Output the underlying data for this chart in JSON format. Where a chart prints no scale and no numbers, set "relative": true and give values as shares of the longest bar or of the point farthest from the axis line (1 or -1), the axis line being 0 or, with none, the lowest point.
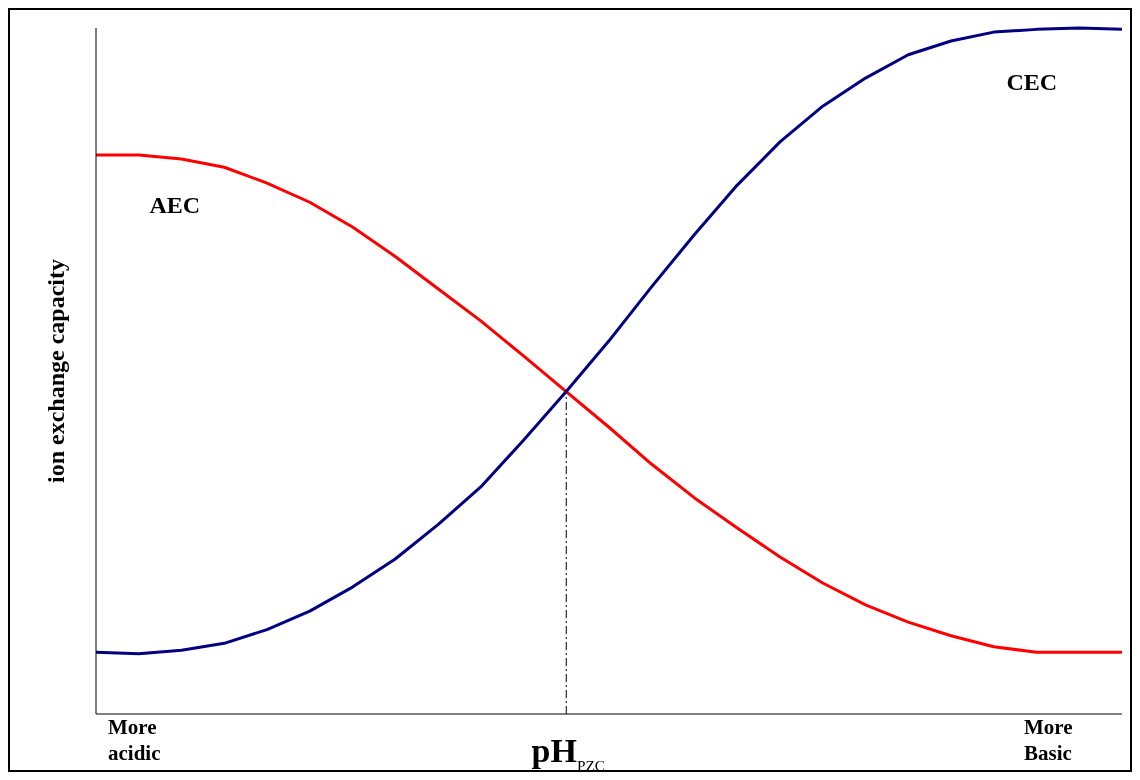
{
  "chart_data": {
    "type": "line",
    "ylabel": "ion exchange capacity",
    "xlabel": "pH$_{PZC}$",
    "relative": true,
    "categories": [
      null,
      null,
      null,
      null,
      null,
      null,
      null,
      null,
      null,
      null,
      null,
      null,
      null,
      null,
      null,
      null,
      null,
      null,
      null,
      null,
      null,
      null,
      null,
      null,
      null
    ],
    "series": [
      {
        "name": "AEC",
        "color": "#ff0000",
        "values": [
          0.815,
          0.815,
          0.809,
          0.797,
          0.774,
          0.746,
          0.71,
          0.667,
          0.62,
          0.573,
          0.522,
          0.47,
          0.418,
          0.364,
          0.315,
          0.271,
          0.229,
          0.191,
          0.159,
          0.134,
          0.114,
          0.098,
          0.09,
          0.09,
          0.09
        ]
      },
      {
        "name": "CEC",
        "color": "#000080",
        "values": [
          0.09,
          0.088,
          0.093,
          0.103,
          0.123,
          0.15,
          0.185,
          0.226,
          0.276,
          0.331,
          0.399,
          0.47,
          0.544,
          0.623,
          0.699,
          0.771,
          0.834,
          0.886,
          0.927,
          0.961,
          0.981,
          0.994,
          0.998,
          1,
          0.998
        ]
      }
    ],
    "annotations": [
      "More acidic",
      "More Basic"
    ],
    "legend": false,
    "grid": false,
    "marker": "none",
    "line_style": "solid"
  }
}
